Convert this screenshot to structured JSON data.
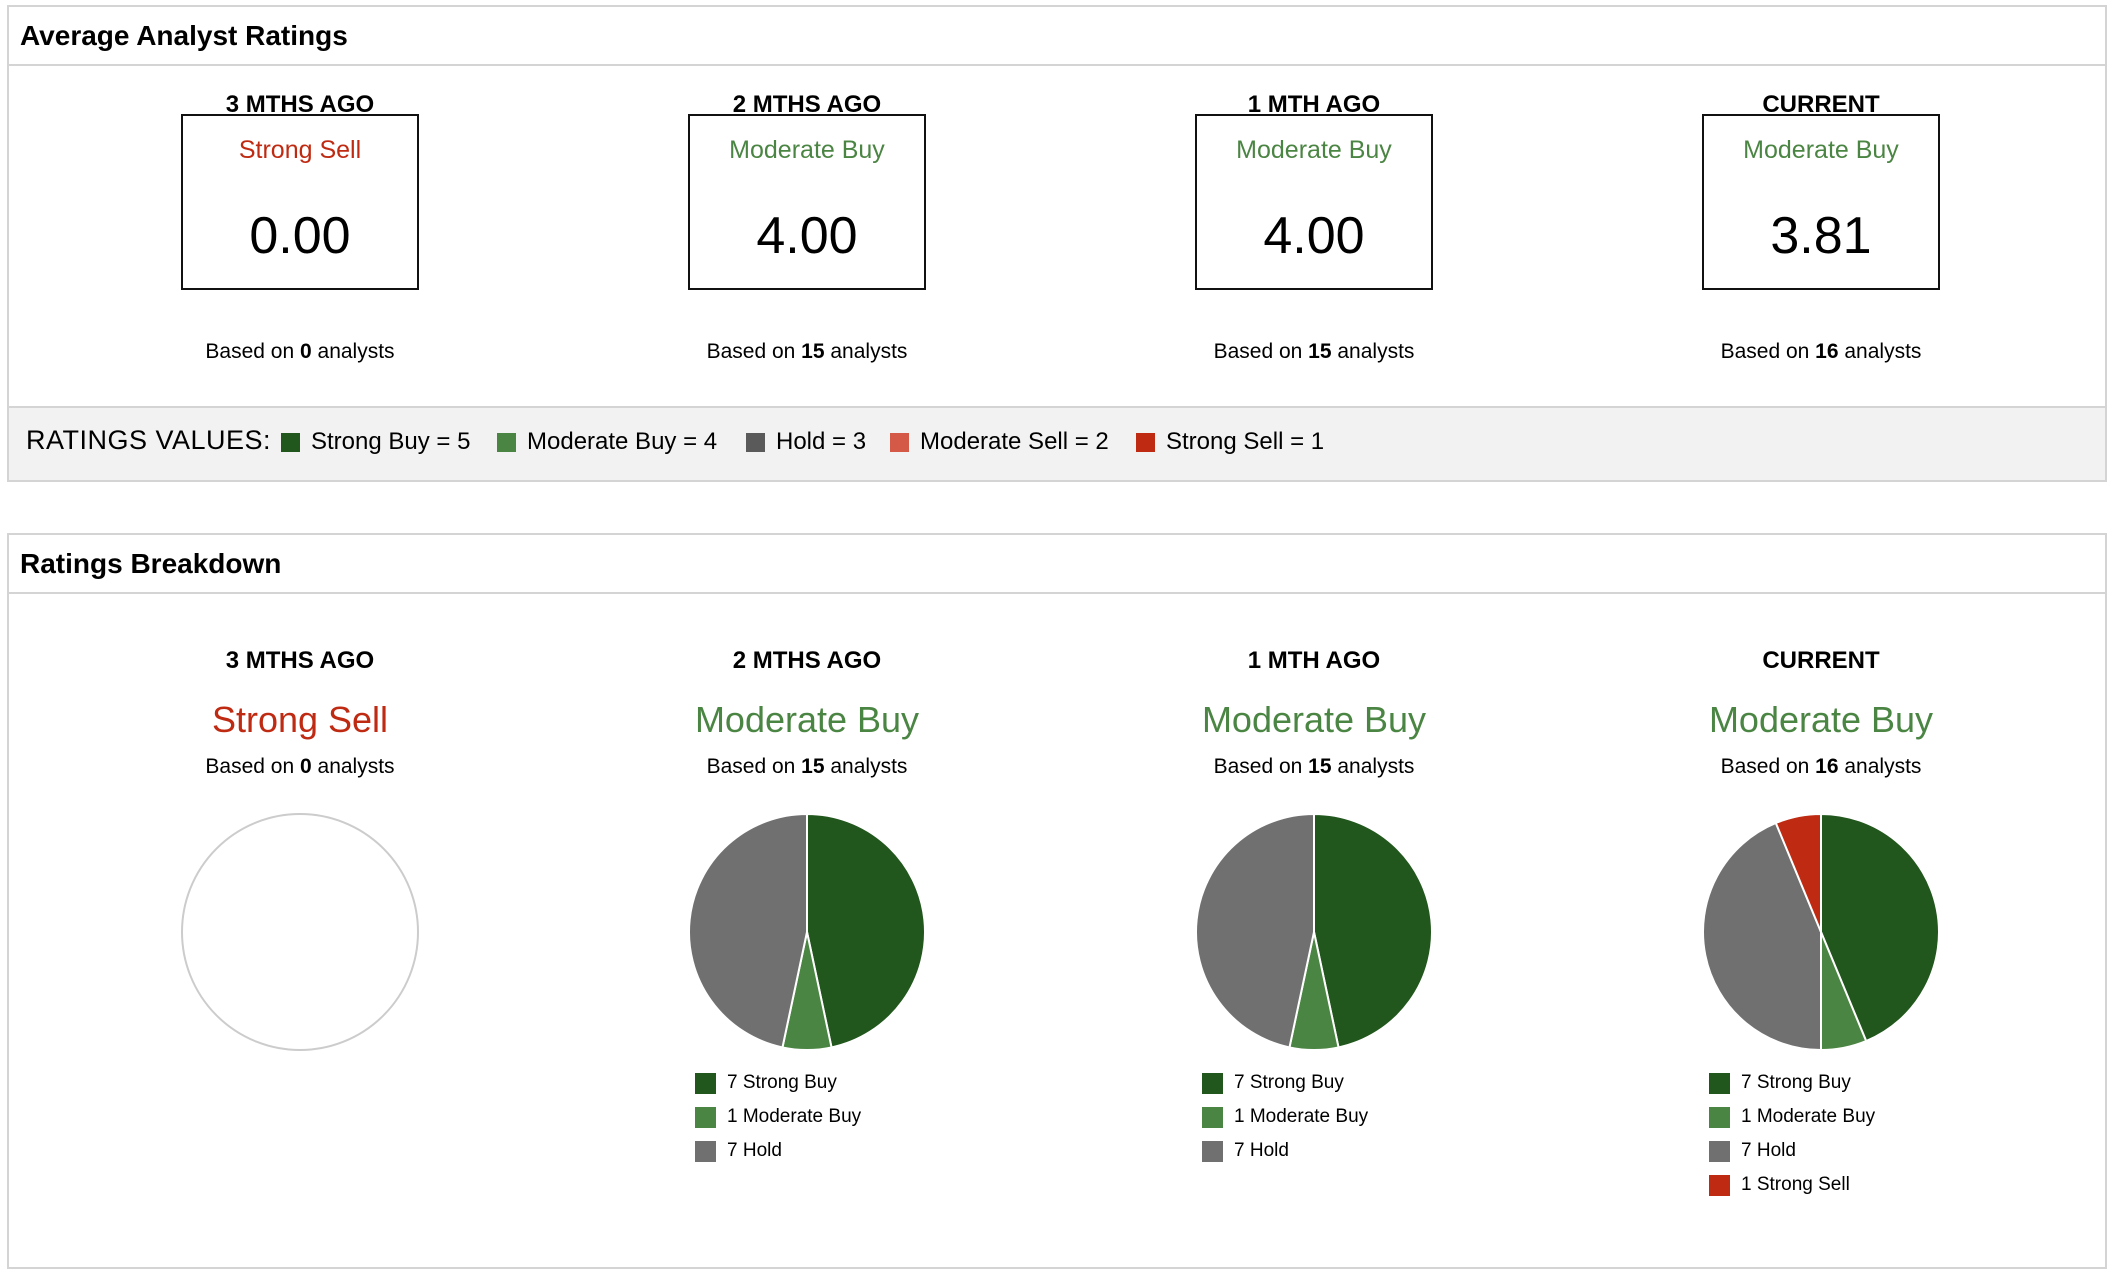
{
  "colors": {
    "strong_buy": "#21561c",
    "moderate_buy": "#4b8543",
    "hold": "#707070",
    "moderate_sell": "#d45947",
    "strong_sell": "#bf2a12"
  },
  "avg": {
    "title": "Average Analyst Ratings",
    "periods": [
      {
        "label": "3 MTHS AGO",
        "rating": "Strong Sell",
        "rating_color": "#bf2a12",
        "score": "0.00",
        "based_prefix": "Based on ",
        "count": "0",
        "based_suffix": " analysts"
      },
      {
        "label": "2 MTHS AGO",
        "rating": "Moderate Buy",
        "rating_color": "#4b8543",
        "score": "4.00",
        "based_prefix": "Based on ",
        "count": "15",
        "based_suffix": " analysts"
      },
      {
        "label": "1 MTH AGO",
        "rating": "Moderate Buy",
        "rating_color": "#4b8543",
        "score": "4.00",
        "based_prefix": "Based on ",
        "count": "15",
        "based_suffix": " analysts"
      },
      {
        "label": "CURRENT",
        "rating": "Moderate Buy",
        "rating_color": "#4b8543",
        "score": "3.81",
        "based_prefix": "Based on ",
        "count": "16",
        "based_suffix": " analysts"
      }
    ],
    "legend": {
      "title": "RATINGS VALUES:",
      "items": [
        {
          "label": "Strong Buy = 5",
          "color": "#21561c"
        },
        {
          "label": "Moderate Buy = 4",
          "color": "#4b8543"
        },
        {
          "label": "Hold = 3",
          "color": "#5a5a5a"
        },
        {
          "label": "Moderate Sell = 2",
          "color": "#d45947"
        },
        {
          "label": "Strong Sell = 1",
          "color": "#bf2a12"
        }
      ]
    }
  },
  "breakdown": {
    "title": "Ratings Breakdown",
    "periods": [
      {
        "label": "3 MTHS AGO",
        "rating": "Strong Sell",
        "rating_color": "#bf2a12",
        "based_prefix": "Based on ",
        "count": "0",
        "based_suffix": " analysts"
      },
      {
        "label": "2 MTHS AGO",
        "rating": "Moderate Buy",
        "rating_color": "#4b8543",
        "based_prefix": "Based on ",
        "count": "15",
        "based_suffix": " analysts"
      },
      {
        "label": "1 MTH AGO",
        "rating": "Moderate Buy",
        "rating_color": "#4b8543",
        "based_prefix": "Based on ",
        "count": "15",
        "based_suffix": " analysts"
      },
      {
        "label": "CURRENT",
        "rating": "Moderate Buy",
        "rating_color": "#4b8543",
        "based_prefix": "Based on ",
        "count": "16",
        "based_suffix": " analysts"
      }
    ]
  },
  "chart_data": [
    {
      "type": "pie",
      "period": "3 MTHS AGO",
      "slices": []
    },
    {
      "type": "pie",
      "period": "2 MTHS AGO",
      "slices": [
        {
          "label": "7 Strong Buy",
          "value": 7,
          "color": "#21561c"
        },
        {
          "label": "1 Moderate Buy",
          "value": 1,
          "color": "#4b8543"
        },
        {
          "label": "7 Hold",
          "value": 7,
          "color": "#707070"
        }
      ]
    },
    {
      "type": "pie",
      "period": "1 MTH AGO",
      "slices": [
        {
          "label": "7 Strong Buy",
          "value": 7,
          "color": "#21561c"
        },
        {
          "label": "1 Moderate Buy",
          "value": 1,
          "color": "#4b8543"
        },
        {
          "label": "7 Hold",
          "value": 7,
          "color": "#707070"
        }
      ]
    },
    {
      "type": "pie",
      "period": "CURRENT",
      "slices": [
        {
          "label": "7 Strong Buy",
          "value": 7,
          "color": "#21561c"
        },
        {
          "label": "1 Moderate Buy",
          "value": 1,
          "color": "#4b8543"
        },
        {
          "label": "7 Hold",
          "value": 7,
          "color": "#707070"
        },
        {
          "label": "1 Strong Sell",
          "value": 1,
          "color": "#bf2a12"
        }
      ]
    }
  ]
}
